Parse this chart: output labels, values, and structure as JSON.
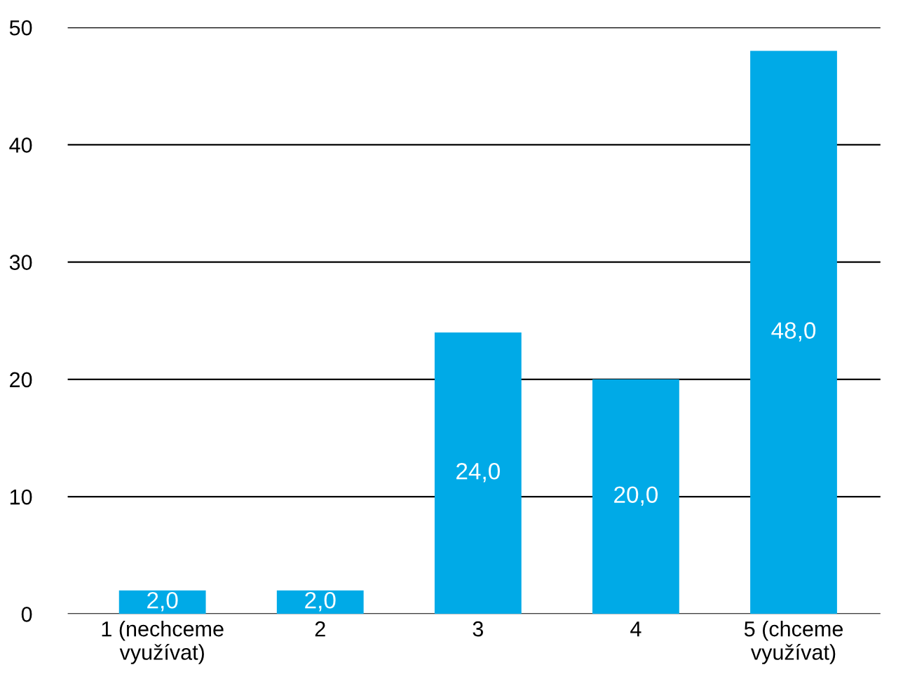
{
  "chart_data": {
    "type": "bar",
    "categories": [
      "1 (nechceme využívat)",
      "2",
      "3",
      "4",
      "5 (chceme využívat)"
    ],
    "values": [
      2,
      2,
      24,
      20,
      48
    ],
    "value_labels": [
      "2,0",
      "2,0",
      "24,0",
      "20,0",
      "48,0"
    ],
    "color": "#00aae7",
    "ylim": [
      0,
      50
    ],
    "yticks": [
      0,
      10,
      20,
      30,
      40,
      50
    ],
    "grid": "y",
    "legend": false
  }
}
